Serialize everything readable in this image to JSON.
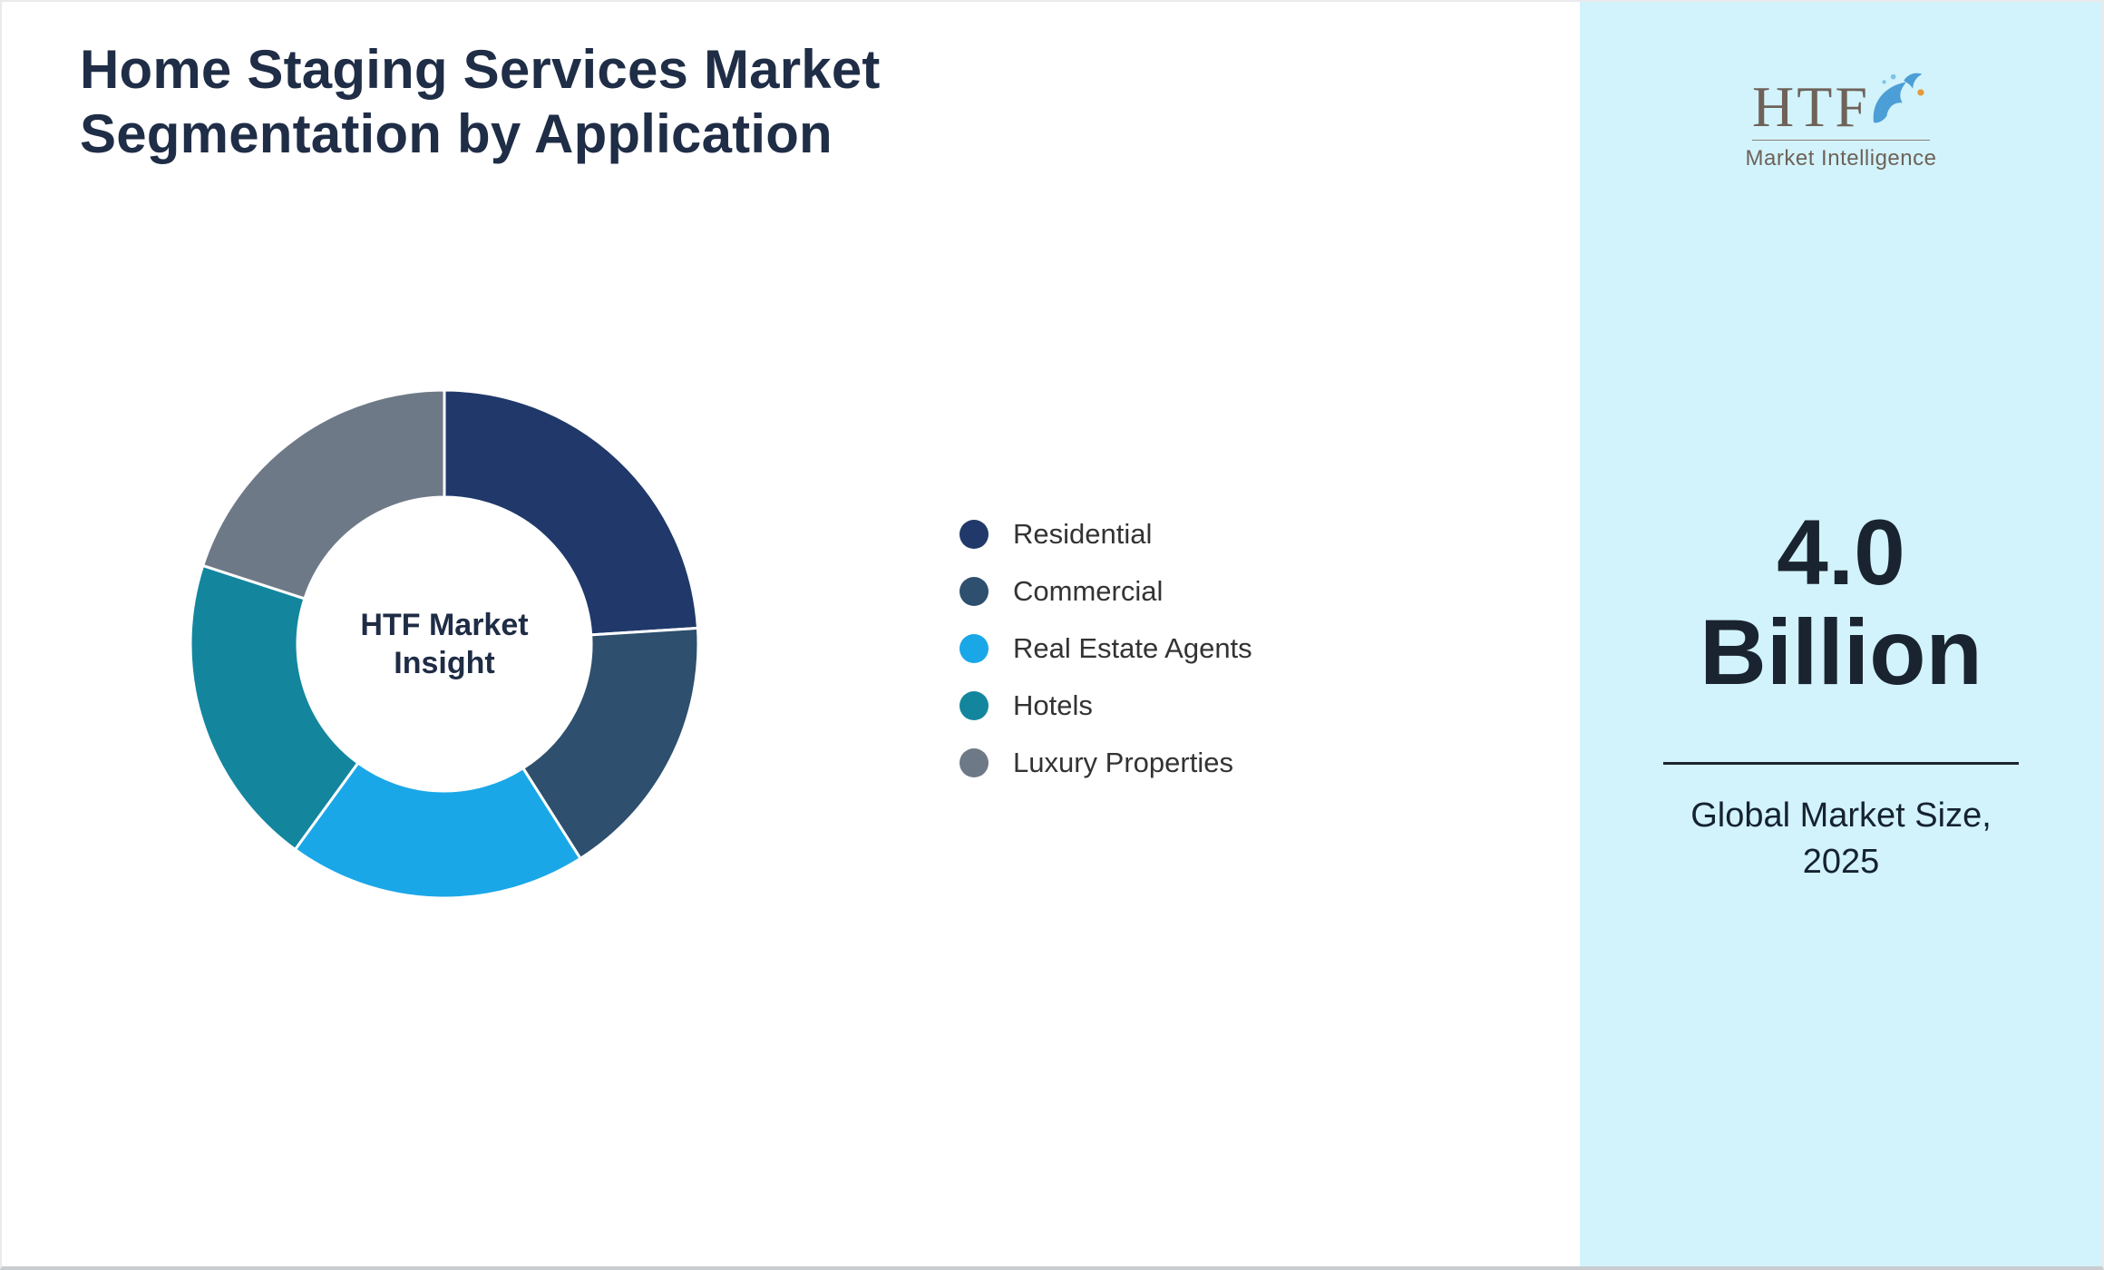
{
  "title": {
    "line1": "Home Staging Services Market",
    "line2": "Segmentation by Application"
  },
  "chart_data": {
    "type": "pie",
    "subtype": "donut",
    "title": "Home Staging Services Market Segmentation by Application",
    "legend_position": "right",
    "start_angle_deg": 0,
    "direction": "clockwise",
    "value_unit": "share_percent_estimated",
    "center_label": {
      "line1": "HTF Market",
      "line2": "Insight"
    },
    "segments": [
      {
        "label": "Residential",
        "value": 24,
        "color": "#20396A"
      },
      {
        "label": "Commercial",
        "value": 17,
        "color": "#2E4F6E"
      },
      {
        "label": "Real Estate Agents",
        "value": 19,
        "color": "#1AA7E8"
      },
      {
        "label": "Hotels",
        "value": 20,
        "color": "#13869E"
      },
      {
        "label": "Luxury Properties",
        "value": 20,
        "color": "#6E7987"
      }
    ]
  },
  "side_panel": {
    "background": "#D2F3FB",
    "logo": {
      "text": "HTF",
      "subtext": "Market Intelligence",
      "dolphin_color": "#4C9ED6",
      "accent_color": "#E49A3A"
    },
    "value_line1": "4.0",
    "value_line2": "Billion",
    "caption_line1": "Global Market Size,",
    "caption_line2": "2025"
  }
}
